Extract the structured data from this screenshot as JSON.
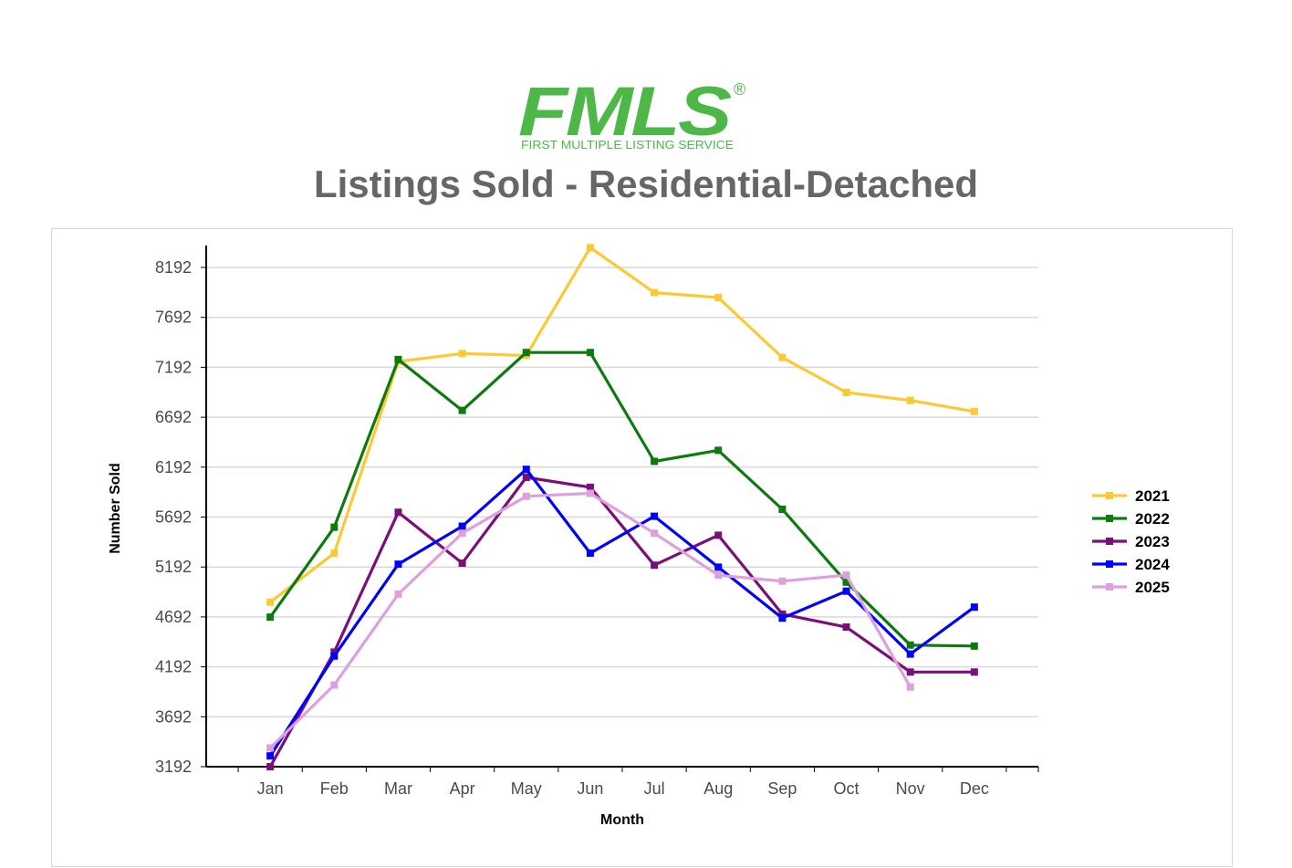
{
  "header": {
    "logo_text": "FMLS",
    "logo_tagline": "FIRST MULTIPLE LISTING SERVICE",
    "logo_mark": "®",
    "title": "Listings Sold - Residential-Detached"
  },
  "colors": {
    "logo_green": "#4db848",
    "title_gray": "#666666"
  },
  "chart_data": {
    "type": "line",
    "title": "Listings Sold - Residential-Detached",
    "xlabel": "Month",
    "ylabel": "Number Sold",
    "categories": [
      "Jan",
      "Feb",
      "Mar",
      "Apr",
      "May",
      "Jun",
      "Jul",
      "Aug",
      "Sep",
      "Oct",
      "Nov",
      "Dec"
    ],
    "yticks": [
      3192,
      3692,
      4192,
      4692,
      5192,
      5692,
      6192,
      6692,
      7192,
      7692,
      8192
    ],
    "ylim": [
      3192,
      8400
    ],
    "grid": "horizontal",
    "legend_position": "right",
    "series": [
      {
        "name": "2021",
        "color": "#fcc934",
        "values": [
          4840,
          5330,
          7250,
          7330,
          7310,
          8390,
          7940,
          7890,
          7290,
          6940,
          6860,
          6750
        ]
      },
      {
        "name": "2022",
        "color": "#0d7a0d",
        "values": [
          4690,
          5590,
          7270,
          6760,
          7340,
          7340,
          6250,
          6360,
          5770,
          5040,
          4410,
          4400
        ]
      },
      {
        "name": "2023",
        "color": "#7a0f7a",
        "values": [
          3192,
          4340,
          5740,
          5230,
          6090,
          5990,
          5210,
          5510,
          4720,
          4590,
          4140,
          4140
        ]
      },
      {
        "name": "2024",
        "color": "#0000ff",
        "values": [
          3300,
          4300,
          5220,
          5600,
          6170,
          5330,
          5700,
          5190,
          4680,
          4950,
          4320,
          4790
        ]
      },
      {
        "name": "2025",
        "color": "#dda0dd",
        "values": [
          3380,
          4010,
          4920,
          5530,
          5900,
          5930,
          5530,
          5110,
          5050,
          5110,
          3990,
          null
        ]
      }
    ]
  }
}
